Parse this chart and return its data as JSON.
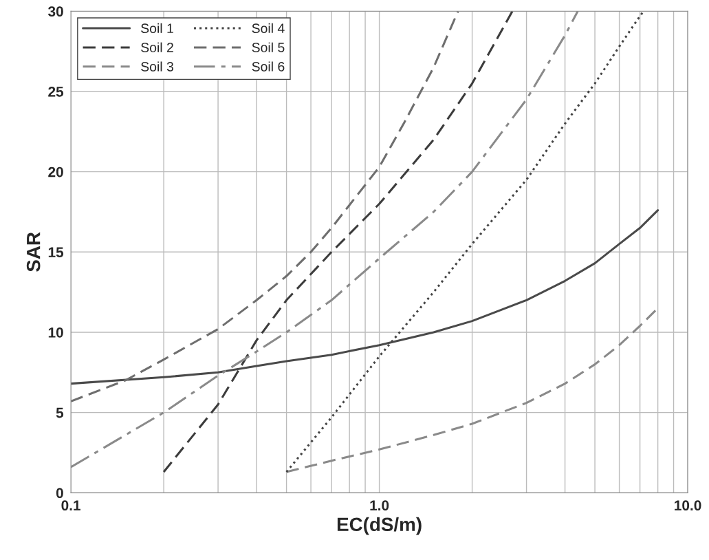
{
  "chart_data": {
    "type": "line",
    "xlabel": "EC(dS/m)",
    "ylabel": "SAR",
    "log": "x",
    "xlim": [
      0.1,
      10
    ],
    "ylim": [
      0,
      30
    ],
    "xticks": [
      {
        "value": 0.1,
        "label": "0.1"
      },
      {
        "value": 0.2,
        "label": null
      },
      {
        "value": 0.3,
        "label": null
      },
      {
        "value": 0.4,
        "label": null
      },
      {
        "value": 0.5,
        "label": null
      },
      {
        "value": 0.6,
        "label": null
      },
      {
        "value": 0.7,
        "label": null
      },
      {
        "value": 0.8,
        "label": null
      },
      {
        "value": 0.9,
        "label": null
      },
      {
        "value": 1,
        "label": "1.0"
      },
      {
        "value": 2,
        "label": null
      },
      {
        "value": 3,
        "label": null
      },
      {
        "value": 4,
        "label": null
      },
      {
        "value": 5,
        "label": null
      },
      {
        "value": 6,
        "label": null
      },
      {
        "value": 7,
        "label": null
      },
      {
        "value": 8,
        "label": null
      },
      {
        "value": 9,
        "label": null
      },
      {
        "value": 10,
        "label": "10.0"
      }
    ],
    "yticks": [
      0,
      5,
      10,
      15,
      20,
      25,
      30
    ],
    "grid": true,
    "legend": "top left",
    "series": [
      {
        "name": "Soil 1",
        "color": "#4a4a4a",
        "line_style": "solid",
        "x": [
          0.1,
          0.2,
          0.3,
          0.4,
          0.5,
          0.7,
          1.0,
          1.5,
          2,
          3,
          4,
          5,
          6,
          7,
          8
        ],
        "values": [
          6.8,
          7.2,
          7.5,
          7.9,
          8.2,
          8.6,
          9.2,
          10.0,
          10.7,
          12.0,
          13.2,
          14.3,
          15.5,
          16.5,
          17.6
        ]
      },
      {
        "name": "Soil 2",
        "color": "#3c3c3c",
        "line_style": "dashed",
        "x": [
          0.2,
          0.3,
          0.4,
          0.5,
          0.7,
          1.0,
          1.5,
          2,
          2.7
        ],
        "values": [
          1.3,
          5.5,
          9.5,
          12,
          15,
          18,
          22,
          25.5,
          30
        ]
      },
      {
        "name": "Soil 3",
        "color": "#8a8a8a",
        "line_style": "dashed",
        "x": [
          0.5,
          0.7,
          1.0,
          1.5,
          2,
          3,
          4,
          5,
          6,
          7,
          8
        ],
        "values": [
          1.3,
          2.0,
          2.7,
          3.6,
          4.3,
          5.6,
          6.8,
          8.0,
          9.2,
          10.4,
          11.5
        ]
      },
      {
        "name": "Soil 4",
        "color": "#444444",
        "line_style": "dotted",
        "x": [
          0.5,
          0.7,
          1.0,
          1.5,
          2,
          3,
          4,
          5,
          6,
          7,
          7.2
        ],
        "values": [
          1.3,
          4.7,
          8.5,
          12.5,
          15.5,
          19.5,
          23,
          25.5,
          27.8,
          29.7,
          30
        ]
      },
      {
        "name": "Soil 5",
        "color": "#6e6e6e",
        "line_style": "dashed",
        "x": [
          0.1,
          0.15,
          0.2,
          0.3,
          0.4,
          0.5,
          0.6,
          0.7,
          1.0,
          1.2,
          1.5,
          1.8
        ],
        "values": [
          5.7,
          7.0,
          8.3,
          10.2,
          12,
          13.5,
          15,
          16.5,
          20.3,
          23,
          26.5,
          30
        ]
      },
      {
        "name": "Soil 6",
        "color": "#8a8a8a",
        "line_style": "dashdot",
        "x": [
          0.1,
          0.2,
          0.3,
          0.4,
          0.5,
          0.7,
          1.0,
          1.5,
          2,
          3,
          4,
          4.4
        ],
        "values": [
          1.6,
          5,
          7.3,
          8.8,
          10,
          12,
          14.6,
          17.5,
          20,
          24.5,
          28.5,
          30
        ]
      }
    ]
  }
}
